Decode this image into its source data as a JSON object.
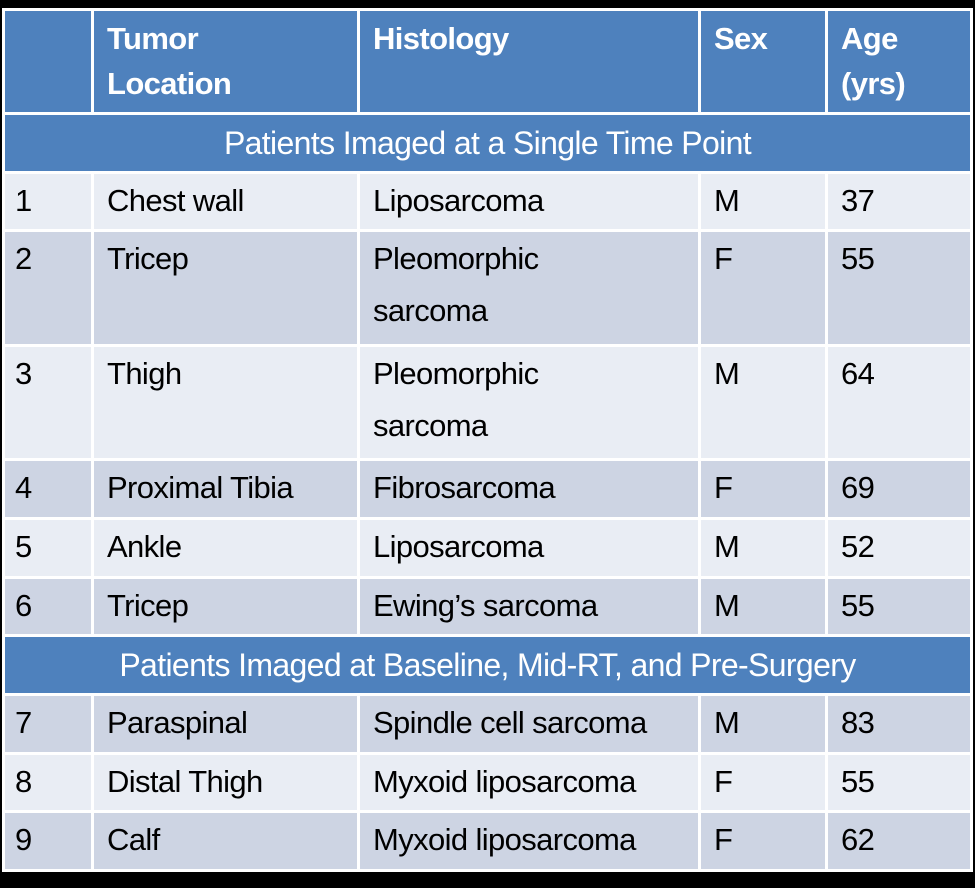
{
  "colors": {
    "header_blue": "#4e81bd",
    "row_light": "#e9edf4",
    "row_dark": "#cdd4e3",
    "gridline_white": "#ffffff",
    "frame_black": "#000000",
    "header_text": "#ffffff",
    "body_text": "#000000"
  },
  "table": {
    "columns": [
      "",
      "Tumor\nLocation",
      "Histology",
      "Sex",
      "Age\n(yrs)"
    ],
    "sections": [
      {
        "title": "Patients Imaged at a Single Time Point",
        "first_row_shade": "light",
        "rows": [
          {
            "num": "1",
            "location": "Chest wall",
            "histology": "Liposarcoma",
            "sex": "M",
            "age": "37"
          },
          {
            "num": "2",
            "location": "Tricep",
            "histology": "Pleomorphic\nsarcoma",
            "sex": "F",
            "age": "55"
          },
          {
            "num": "3",
            "location": "Thigh",
            "histology": "Pleomorphic\nsarcoma",
            "sex": "M",
            "age": "64"
          },
          {
            "num": "4",
            "location": "Proximal Tibia",
            "histology": "Fibrosarcoma",
            "sex": "F",
            "age": "69"
          },
          {
            "num": "5",
            "location": "Ankle",
            "histology": "Liposarcoma",
            "sex": "M",
            "age": "52"
          },
          {
            "num": "6",
            "location": "Tricep",
            "histology": "Ewing’s sarcoma",
            "sex": "M",
            "age": "55"
          }
        ]
      },
      {
        "title": "Patients Imaged at Baseline, Mid-RT, and Pre-Surgery",
        "first_row_shade": "dark",
        "rows": [
          {
            "num": "7",
            "location": "Paraspinal",
            "histology": "Spindle cell sarcoma",
            "sex": "M",
            "age": "83"
          },
          {
            "num": "8",
            "location": "Distal Thigh",
            "histology": "Myxoid liposarcoma",
            "sex": "F",
            "age": "55"
          },
          {
            "num": "9",
            "location": "Calf",
            "histology": "Myxoid liposarcoma",
            "sex": "F",
            "age": "62"
          }
        ]
      }
    ]
  }
}
